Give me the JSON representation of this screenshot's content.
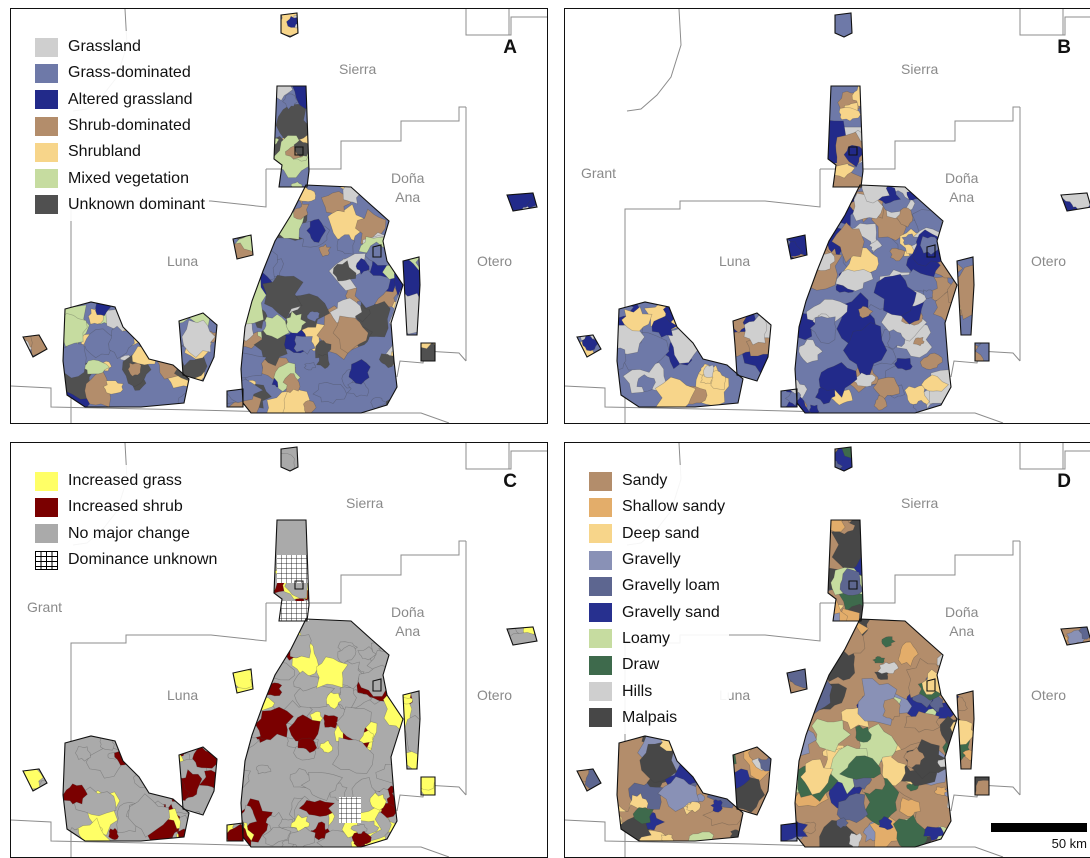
{
  "panels": [
    {
      "letter": "A",
      "counties": {
        "sierra": "Sierra",
        "grant": "",
        "dona_ana": "Doña\nAna",
        "luna": "Luna",
        "otero": "Otero"
      },
      "legend": [
        {
          "label": "Grassland",
          "color": "#cfcfcf"
        },
        {
          "label": "Grass-dominated",
          "color": "#6e79a8"
        },
        {
          "label": "Altered grassland",
          "color": "#222a8a"
        },
        {
          "label": "Shrub-dominated",
          "color": "#b38d6b"
        },
        {
          "label": "Shrubland",
          "color": "#f7d58a"
        },
        {
          "label": "Mixed vegetation",
          "color": "#c6dca0"
        },
        {
          "label": "Unknown dominant",
          "color": "#505050"
        }
      ],
      "fills": [
        "#6e79a8",
        "#b38d6b",
        "#f7d58a",
        "#cfcfcf",
        "#505050",
        "#c6dca0",
        "#222a8a"
      ],
      "scalebar": ""
    },
    {
      "letter": "B",
      "counties": {
        "sierra": "Sierra",
        "grant": "Grant",
        "dona_ana": "Doña\nAna",
        "luna": "Luna",
        "otero": "Otero"
      },
      "legend": [],
      "fills": [
        "#6e79a8",
        "#f7d58a",
        "#b38d6b",
        "#cfcfcf",
        "#222a8a"
      ],
      "scalebar": ""
    },
    {
      "letter": "C",
      "counties": {
        "sierra": "Sierra",
        "grant": "Grant",
        "dona_ana": "Doña\nAna",
        "luna": "Luna",
        "otero": "Otero"
      },
      "legend": [
        {
          "label": "Increased grass",
          "color": "#ffff66"
        },
        {
          "label": "Increased shrub",
          "color": "#7a0000"
        },
        {
          "label": "No major change",
          "color": "#aaaaaa"
        },
        {
          "label": "Dominance unknown",
          "color": "hatch"
        }
      ],
      "fills": [
        "#aaaaaa",
        "#aaaaaa",
        "#ffff66",
        "#7a0000"
      ],
      "scalebar": ""
    },
    {
      "letter": "D",
      "counties": {
        "sierra": "Sierra",
        "grant": "",
        "dona_ana": "Doña\nAna",
        "luna": "Luna",
        "otero": "Otero"
      },
      "legend": [
        {
          "label": "Sandy",
          "color": "#b38d6b"
        },
        {
          "label": "Shallow sandy",
          "color": "#e3ad6a"
        },
        {
          "label": "Deep sand",
          "color": "#f7d58a"
        },
        {
          "label": "Gravelly",
          "color": "#8991b6"
        },
        {
          "label": "Gravelly loam",
          "color": "#5d6690"
        },
        {
          "label": "Gravelly sand",
          "color": "#27308f"
        },
        {
          "label": "Loamy",
          "color": "#c6dca0"
        },
        {
          "label": "Draw",
          "color": "#3e6a4c"
        },
        {
          "label": "Hills",
          "color": "#cfcfcf"
        },
        {
          "label": "Malpais",
          "color": "#474747"
        }
      ],
      "fills": [
        "#b38d6b",
        "#8991b6",
        "#f7d58a",
        "#5d6690",
        "#474747",
        "#cfcfcf",
        "#e3ad6a",
        "#c6dca0",
        "#3e6a4c",
        "#27308f"
      ],
      "scalebar": "50 km"
    }
  ]
}
